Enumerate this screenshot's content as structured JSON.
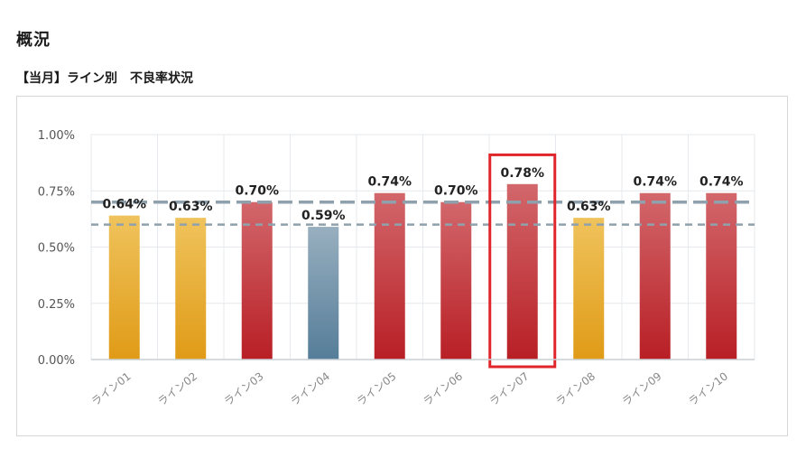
{
  "page": {
    "heading": "概況",
    "subheading": "【当月】ライン別　不良率状況"
  },
  "colors": {
    "above_target": "#c93a3f",
    "warning": "#e6a62a",
    "normal": "#6f8fa6",
    "highlight_box": "#e0262b",
    "reference_lines": "#8fa1ad"
  },
  "chart_data": {
    "type": "bar",
    "title": "",
    "xlabel": "",
    "ylabel": "",
    "ylim": [
      0,
      1.0
    ],
    "y_ticks": [
      "1.00%",
      "0.75%",
      "0.50%",
      "0.25%",
      "0.00%"
    ],
    "y_tick_values": [
      1.0,
      0.75,
      0.5,
      0.25,
      0.0
    ],
    "categories": [
      "ライン01",
      "ライン02",
      "ライン03",
      "ライン04",
      "ライン05",
      "ライン06",
      "ライン07",
      "ライン08",
      "ライン09",
      "ライン10"
    ],
    "values": [
      0.64,
      0.63,
      0.7,
      0.59,
      0.74,
      0.7,
      0.78,
      0.63,
      0.74,
      0.74
    ],
    "data_labels": [
      "0.64%",
      "0.63%",
      "0.70%",
      "0.59%",
      "0.74%",
      "0.70%",
      "0.78%",
      "0.63%",
      "0.74%",
      "0.74%"
    ],
    "bar_status": [
      "warning",
      "warning",
      "above_target",
      "normal",
      "above_target",
      "above_target",
      "above_target",
      "warning",
      "above_target",
      "above_target"
    ],
    "reference_lines": [
      {
        "value": 0.7,
        "style": "long-dash"
      },
      {
        "value": 0.6,
        "style": "short-dash"
      }
    ],
    "highlighted_category": "ライン07",
    "grid": true
  }
}
